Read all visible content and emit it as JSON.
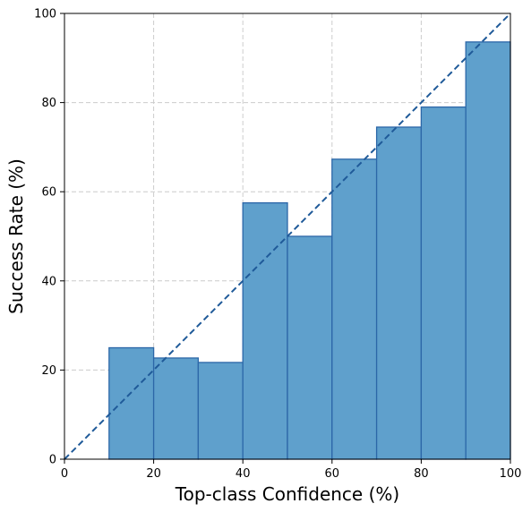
{
  "chart_data": {
    "type": "bar",
    "title": "",
    "xlabel": "Top-class Confidence (%)",
    "ylabel": "Success Rate (%)",
    "xlim": [
      0,
      100
    ],
    "ylim": [
      0,
      100
    ],
    "xticks": [
      "0",
      "20",
      "40",
      "60",
      "80",
      "100"
    ],
    "yticks": [
      "0",
      "20",
      "40",
      "60",
      "80",
      "100"
    ],
    "bins": [
      {
        "x0": 10,
        "x1": 20,
        "value": 25.0
      },
      {
        "x0": 20,
        "x1": 30,
        "value": 22.7
      },
      {
        "x0": 30,
        "x1": 40,
        "value": 21.7
      },
      {
        "x0": 40,
        "x1": 50,
        "value": 57.5
      },
      {
        "x0": 50,
        "x1": 60,
        "value": 50.0
      },
      {
        "x0": 60,
        "x1": 70,
        "value": 67.3
      },
      {
        "x0": 70,
        "x1": 80,
        "value": 74.5
      },
      {
        "x0": 80,
        "x1": 90,
        "value": 79.0
      },
      {
        "x0": 90,
        "x1": 100,
        "value": 93.6
      }
    ],
    "reference_line": {
      "from": [
        0,
        0
      ],
      "to": [
        100,
        100
      ],
      "style": "dashed"
    },
    "grid": true,
    "colors": {
      "bar_fill": "#5fa0cc",
      "bar_edge": "#2c67a8",
      "reference_line": "#1f5a99",
      "grid": "#cccccc"
    }
  }
}
